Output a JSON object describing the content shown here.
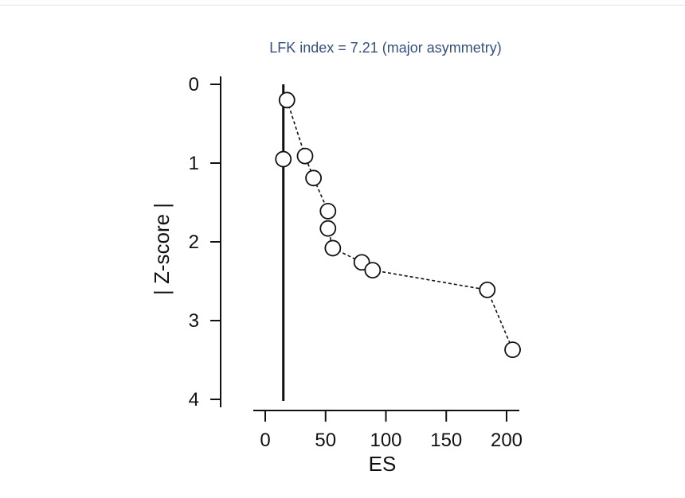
{
  "chart_data": {
    "type": "scatter",
    "title": "LFK index = 7.21 (major asymmetry)",
    "xlabel": "ES",
    "ylabel": "| Z-score |",
    "xlim": [
      -5,
      210
    ],
    "ylim": [
      4,
      0
    ],
    "y_inverted": true,
    "xticks": [
      0,
      50,
      100,
      150,
      200
    ],
    "yticks": [
      0,
      1,
      2,
      3,
      4
    ],
    "reference_line_x": 15,
    "grid": false,
    "legend": "none",
    "points": [
      {
        "x": 18,
        "y": 0.2
      },
      {
        "x": 15,
        "y": 0.95
      },
      {
        "x": 33,
        "y": 0.91
      },
      {
        "x": 40,
        "y": 1.19
      },
      {
        "x": 52,
        "y": 1.61
      },
      {
        "x": 52,
        "y": 1.83
      },
      {
        "x": 56,
        "y": 2.08
      },
      {
        "x": 80,
        "y": 2.26
      },
      {
        "x": 89,
        "y": 2.36
      },
      {
        "x": 184,
        "y": 2.61
      },
      {
        "x": 205,
        "y": 3.37
      }
    ],
    "connector_order": [
      0,
      2,
      3,
      4,
      5,
      6,
      7,
      8,
      9,
      10
    ]
  },
  "colors": {
    "title": "#34507a",
    "axis": "#111111",
    "marker_fill": "#ffffff",
    "marker_stroke": "#111111"
  }
}
